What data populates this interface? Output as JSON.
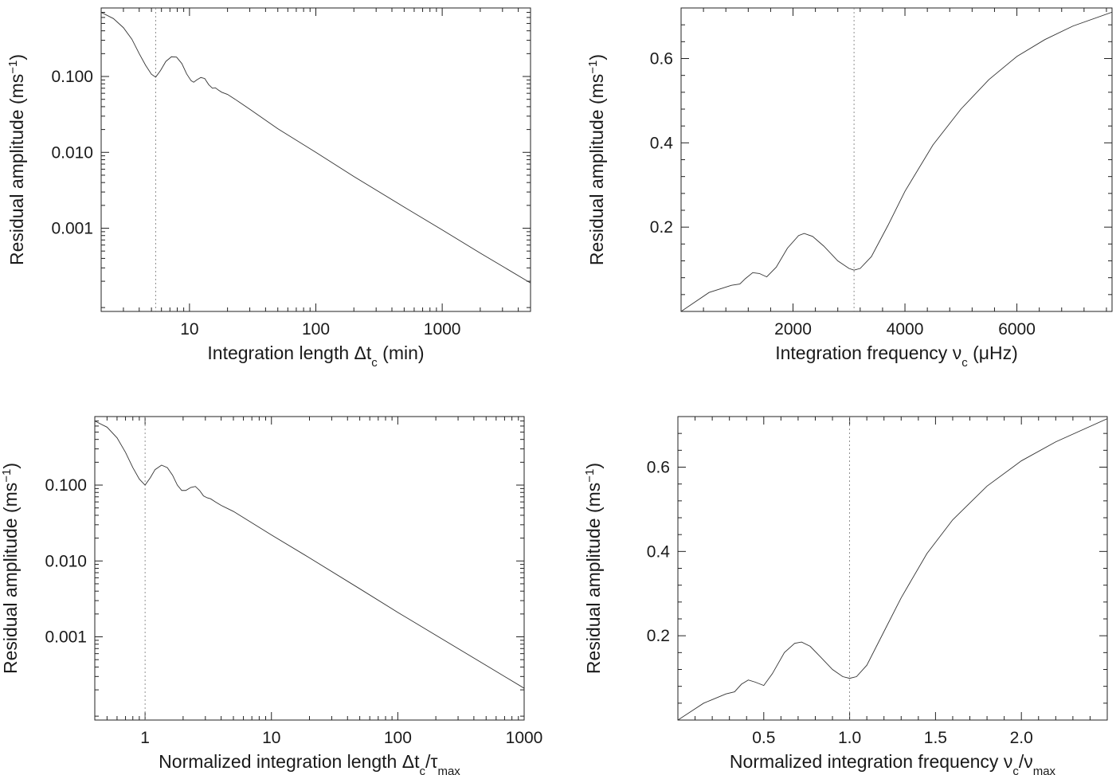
{
  "chart_data": [
    {
      "id": "p1",
      "type": "line",
      "xscale": "log",
      "yscale": "log",
      "xlim": [
        2,
        5000
      ],
      "ylim": [
        8e-05,
        0.8
      ],
      "xlabel": {
        "main": "Integration length Δt",
        "sub": "c",
        "tail": " (min)"
      },
      "ylabel": {
        "main": "Residual amplitude (ms",
        "sup": "−1",
        "tail": ")"
      },
      "xticks": [
        10,
        100,
        1000
      ],
      "xtick_labels": [
        "10",
        "100",
        "1000"
      ],
      "yticks": [
        0.1,
        0.01,
        0.001
      ],
      "ytick_labels": [
        "0.100",
        "0.010",
        "0.001"
      ],
      "marker_x": 5.4,
      "series": [
        {
          "x": [
            2.0,
            2.5,
            3.0,
            3.5,
            4.0,
            4.5,
            5.0,
            5.4,
            5.9,
            6.5,
            7.2,
            7.9,
            8.7,
            9.5,
            10.3,
            10.8,
            11.4,
            12.3,
            13.2,
            14.2,
            15.2,
            16.0,
            17.0,
            18.0,
            20.0,
            23.0,
            30,
            50,
            100,
            200,
            500,
            1000,
            2000,
            5000
          ],
          "y": [
            0.7,
            0.58,
            0.44,
            0.31,
            0.2,
            0.14,
            0.107,
            0.098,
            0.12,
            0.158,
            0.182,
            0.18,
            0.148,
            0.108,
            0.088,
            0.084,
            0.09,
            0.097,
            0.094,
            0.078,
            0.07,
            0.071,
            0.066,
            0.062,
            0.058,
            0.05,
            0.037,
            0.0205,
            0.01,
            0.0048,
            0.0019,
            0.00095,
            0.00047,
            0.00019
          ]
        }
      ]
    },
    {
      "id": "p2",
      "type": "line",
      "xscale": "linear",
      "yscale": "linear",
      "xlim": [
        0,
        7700
      ],
      "ylim": [
        0,
        0.72
      ],
      "xlabel": {
        "main": "Integration frequency ν",
        "sub": "c",
        "tail": " (μHz)"
      },
      "ylabel": {
        "main": "Residual amplitude (ms",
        "sup": "−1",
        "tail": ")"
      },
      "xticks": [
        2000,
        4000,
        6000
      ],
      "xtick_labels": [
        "2000",
        "4000",
        "6000"
      ],
      "yticks": [
        0.2,
        0.4,
        0.6
      ],
      "ytick_labels": [
        "0.2",
        "0.4",
        "0.6"
      ],
      "marker_x": 3090,
      "series": [
        {
          "x": [
            0,
            500,
            900,
            1050,
            1150,
            1280,
            1400,
            1530,
            1700,
            1900,
            2100,
            2200,
            2350,
            2550,
            2800,
            3000,
            3090,
            3200,
            3400,
            3700,
            4000,
            4500,
            5000,
            5500,
            6000,
            6500,
            7000,
            7700
          ],
          "y": [
            0,
            0.045,
            0.062,
            0.065,
            0.078,
            0.092,
            0.09,
            0.082,
            0.105,
            0.15,
            0.18,
            0.185,
            0.178,
            0.155,
            0.12,
            0.102,
            0.098,
            0.102,
            0.13,
            0.205,
            0.285,
            0.395,
            0.48,
            0.55,
            0.605,
            0.645,
            0.677,
            0.71
          ]
        }
      ]
    },
    {
      "id": "p3",
      "type": "line",
      "xscale": "log",
      "yscale": "log",
      "xlim": [
        0.4,
        1000
      ],
      "ylim": [
        8e-05,
        0.8
      ],
      "xlabel": {
        "main": "Normalized integration length Δt",
        "sub": "c",
        "mid": "/τ",
        "sub2": "max",
        "tail": ""
      },
      "ylabel": {
        "main": "Residual amplitude (ms",
        "sup": "−1",
        "tail": ")"
      },
      "xticks": [
        1,
        10,
        100,
        1000
      ],
      "xtick_labels": [
        "1",
        "10",
        "100",
        "1000"
      ],
      "yticks": [
        0.1,
        0.01,
        0.001
      ],
      "ytick_labels": [
        "0.100",
        "0.010",
        "0.001"
      ],
      "marker_x": 1.0,
      "series": [
        {
          "x": [
            0.4,
            0.5,
            0.6,
            0.7,
            0.8,
            0.9,
            1.0,
            1.1,
            1.2,
            1.35,
            1.5,
            1.65,
            1.8,
            1.95,
            2.1,
            2.3,
            2.5,
            2.7,
            2.9,
            3.1,
            3.3,
            3.6,
            4.0,
            5.0,
            10,
            20,
            50,
            100,
            200,
            500,
            1000
          ],
          "y": [
            0.7,
            0.58,
            0.42,
            0.27,
            0.17,
            0.12,
            0.1,
            0.125,
            0.16,
            0.183,
            0.17,
            0.135,
            0.1,
            0.085,
            0.085,
            0.093,
            0.096,
            0.085,
            0.072,
            0.068,
            0.066,
            0.06,
            0.054,
            0.045,
            0.022,
            0.011,
            0.0043,
            0.0021,
            0.00105,
            0.00042,
            0.00021
          ]
        }
      ]
    },
    {
      "id": "p4",
      "type": "line",
      "xscale": "linear",
      "yscale": "linear",
      "xlim": [
        0,
        2.5
      ],
      "ylim": [
        0,
        0.72
      ],
      "xlabel": {
        "main": "Normalized integration frequency ν",
        "sub": "c",
        "mid": "/ν",
        "sub2": "max",
        "tail": ""
      },
      "ylabel": {
        "main": "Residual amplitude (ms",
        "sup": "−1",
        "tail": ")"
      },
      "xticks": [
        0.5,
        1.0,
        1.5,
        2.0
      ],
      "xtick_labels": [
        "0.5",
        "1.0",
        "1.5",
        "2.0"
      ],
      "yticks": [
        0.2,
        0.4,
        0.6
      ],
      "ytick_labels": [
        "0.2",
        "0.4",
        "0.6"
      ],
      "marker_x": 1.0,
      "series": [
        {
          "x": [
            0,
            0.15,
            0.28,
            0.33,
            0.37,
            0.41,
            0.45,
            0.5,
            0.55,
            0.62,
            0.68,
            0.72,
            0.77,
            0.83,
            0.9,
            0.96,
            1.0,
            1.04,
            1.1,
            1.2,
            1.3,
            1.45,
            1.6,
            1.8,
            2.0,
            2.2,
            2.5
          ],
          "y": [
            0,
            0.04,
            0.062,
            0.067,
            0.085,
            0.095,
            0.09,
            0.082,
            0.11,
            0.16,
            0.182,
            0.185,
            0.175,
            0.15,
            0.12,
            0.103,
            0.099,
            0.103,
            0.13,
            0.21,
            0.29,
            0.395,
            0.475,
            0.555,
            0.615,
            0.66,
            0.715
          ]
        }
      ]
    }
  ]
}
